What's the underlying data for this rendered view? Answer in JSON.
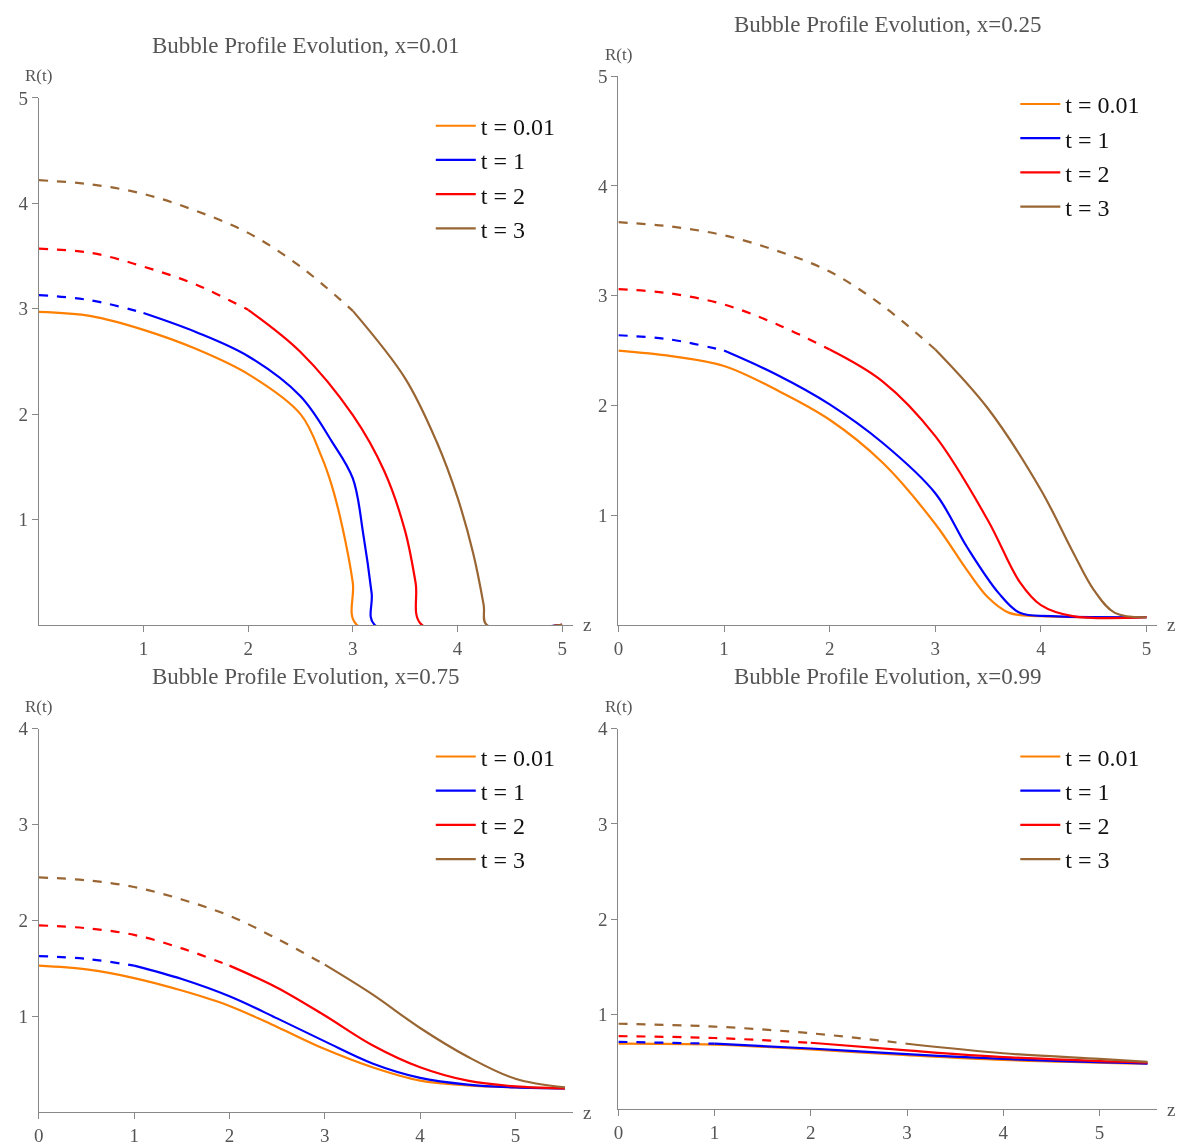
{
  "chart_data": [
    {
      "type": "line",
      "title": "Bubble Profile Evolution, x=0.01",
      "xlabel": "z",
      "ylabel": "R(t)",
      "xlim": [
        0,
        5.1
      ],
      "ylim": [
        0,
        5
      ],
      "xticks": [
        1,
        2,
        3,
        4,
        5
      ],
      "yticks": [
        1,
        2,
        3,
        4,
        5
      ],
      "legend": "top right",
      "series": [
        {
          "name": "t = 0.01",
          "color": "#ff8000",
          "line_style": "solid",
          "x": [
            0,
            0.5,
            1,
            1.5,
            2,
            2.5,
            2.7,
            2.8,
            2.9,
            3.0,
            3.04,
            5.0
          ],
          "values": [
            2.97,
            2.93,
            2.8,
            2.62,
            2.38,
            2.0,
            1.6,
            1.32,
            0.93,
            0.4,
            0,
            0
          ]
        },
        {
          "name": "t = 1",
          "color": "#0000ff",
          "line_style": "solid",
          "x": [
            1,
            1.5,
            2,
            2.5,
            2.8,
            3.0,
            3.1,
            3.18,
            3.21,
            5.0
          ],
          "values": [
            2.96,
            2.78,
            2.55,
            2.17,
            1.74,
            1.39,
            0.86,
            0.3,
            0,
            0
          ]
        },
        {
          "name": "t = 2",
          "color": "#ff0000",
          "line_style": "solid",
          "x": [
            2,
            2.5,
            3,
            3.3,
            3.5,
            3.6,
            3.66,
            5.0
          ],
          "values": [
            2.99,
            2.59,
            1.99,
            1.46,
            0.89,
            0.4,
            0,
            0
          ]
        },
        {
          "name": "t = 3",
          "color": "#996633",
          "line_style": "solid",
          "x": [
            3,
            3.5,
            3.8,
            4,
            4.15,
            4.25,
            4.28,
            5.0
          ],
          "values": [
            2.98,
            2.34,
            1.74,
            1.21,
            0.68,
            0.19,
            0,
            0
          ]
        },
        {
          "color": "#0000ff",
          "line_style": "dashed",
          "x": [
            0,
            0.5,
            1
          ],
          "values": [
            3.13,
            3.08,
            2.96
          ]
        },
        {
          "color": "#ff0000",
          "line_style": "dashed",
          "x": [
            0,
            0.5,
            1,
            1.5,
            2
          ],
          "values": [
            3.57,
            3.53,
            3.4,
            3.23,
            2.99
          ]
        },
        {
          "color": "#996633",
          "line_style": "dashed",
          "x": [
            0,
            0.5,
            1,
            1.5,
            2,
            2.5,
            3
          ],
          "values": [
            4.22,
            4.18,
            4.09,
            3.93,
            3.72,
            3.4,
            2.98
          ]
        }
      ]
    },
    {
      "type": "line",
      "title": "Bubble Profile Evolution, x=0.25",
      "xlabel": "z",
      "ylabel": "R(t)",
      "xlim": [
        0,
        5.1
      ],
      "ylim": [
        0,
        5
      ],
      "xticks": [
        0,
        1,
        2,
        3,
        4,
        5
      ],
      "yticks": [
        1,
        2,
        3,
        4,
        5
      ],
      "legend": "top right",
      "series": [
        {
          "name": "t = 0.01",
          "color": "#ff8000",
          "line_style": "solid",
          "x": [
            0,
            0.5,
            1,
            1.5,
            2,
            2.5,
            3,
            3.3,
            3.5,
            3.7,
            4,
            5.0
          ],
          "values": [
            2.5,
            2.45,
            2.36,
            2.14,
            1.87,
            1.48,
            0.92,
            0.5,
            0.25,
            0.11,
            0.08,
            0.07
          ]
        },
        {
          "name": "t = 1",
          "color": "#0000ff",
          "line_style": "solid",
          "x": [
            1,
            1.5,
            2,
            2.5,
            3,
            3.3,
            3.6,
            3.8,
            4.1,
            5.0
          ],
          "values": [
            2.5,
            2.28,
            2.01,
            1.66,
            1.2,
            0.71,
            0.29,
            0.11,
            0.08,
            0.07
          ]
        },
        {
          "name": "t = 2",
          "color": "#ff0000",
          "line_style": "solid",
          "x": [
            2,
            2.5,
            3,
            3.5,
            3.8,
            4,
            4.3,
            5.0
          ],
          "values": [
            2.51,
            2.22,
            1.72,
            0.95,
            0.39,
            0.18,
            0.08,
            0.07
          ]
        },
        {
          "name": "t = 3",
          "color": "#996633",
          "line_style": "solid",
          "x": [
            3,
            3.5,
            4,
            4.3,
            4.5,
            4.7,
            5.0
          ],
          "values": [
            2.51,
            1.97,
            1.23,
            0.67,
            0.32,
            0.11,
            0.07
          ]
        },
        {
          "color": "#0000ff",
          "line_style": "dashed",
          "x": [
            0,
            0.5,
            1
          ],
          "values": [
            2.64,
            2.6,
            2.5
          ]
        },
        {
          "color": "#ff0000",
          "line_style": "dashed",
          "x": [
            0,
            0.5,
            1,
            1.5,
            2
          ],
          "values": [
            3.06,
            3.02,
            2.92,
            2.74,
            2.51
          ]
        },
        {
          "color": "#996633",
          "line_style": "dashed",
          "x": [
            0,
            0.5,
            1,
            1.5,
            2,
            2.5,
            3
          ],
          "values": [
            3.67,
            3.63,
            3.55,
            3.41,
            3.22,
            2.91,
            2.51
          ]
        }
      ]
    },
    {
      "type": "line",
      "title": "Bubble Profile Evolution, x=0.75",
      "xlabel": "z",
      "ylabel": "R(t)",
      "xlim": [
        0,
        5.6
      ],
      "ylim": [
        0,
        4
      ],
      "xticks": [
        0,
        1,
        2,
        3,
        4,
        5
      ],
      "yticks": [
        1,
        2,
        3,
        4
      ],
      "legend": "top right",
      "series": [
        {
          "name": "t = 0.01",
          "color": "#ff8000",
          "line_style": "solid",
          "x": [
            0,
            0.5,
            1,
            1.5,
            2,
            2.5,
            3,
            3.5,
            4,
            4.5,
            5,
            5.52
          ],
          "values": [
            1.53,
            1.49,
            1.4,
            1.27,
            1.11,
            0.89,
            0.66,
            0.47,
            0.33,
            0.28,
            0.26,
            0.25
          ]
        },
        {
          "name": "t = 1",
          "color": "#0000ff",
          "line_style": "solid",
          "x": [
            1,
            1.5,
            2,
            2.5,
            3,
            3.5,
            4,
            4.5,
            5,
            5.52
          ],
          "values": [
            1.53,
            1.39,
            1.21,
            0.98,
            0.74,
            0.51,
            0.36,
            0.29,
            0.26,
            0.25
          ]
        },
        {
          "name": "t = 2",
          "color": "#ff0000",
          "line_style": "solid",
          "x": [
            2,
            2.5,
            3,
            3.5,
            4,
            4.5,
            5,
            5.52
          ],
          "values": [
            1.53,
            1.3,
            1.01,
            0.7,
            0.47,
            0.33,
            0.27,
            0.25
          ]
        },
        {
          "name": "t = 3",
          "color": "#996633",
          "line_style": "solid",
          "x": [
            3,
            3.5,
            4,
            4.5,
            5,
            5.52
          ],
          "values": [
            1.54,
            1.23,
            0.88,
            0.58,
            0.35,
            0.26
          ]
        },
        {
          "color": "#0000ff",
          "line_style": "dashed",
          "x": [
            0,
            0.5,
            1
          ],
          "values": [
            1.63,
            1.6,
            1.53
          ]
        },
        {
          "color": "#ff0000",
          "line_style": "dashed",
          "x": [
            0,
            0.5,
            1,
            1.5,
            2
          ],
          "values": [
            1.95,
            1.92,
            1.85,
            1.71,
            1.53
          ]
        },
        {
          "color": "#996633",
          "line_style": "dashed",
          "x": [
            0,
            0.5,
            1,
            1.5,
            2,
            2.5,
            3
          ],
          "values": [
            2.45,
            2.42,
            2.35,
            2.22,
            2.05,
            1.81,
            1.54
          ]
        }
      ]
    },
    {
      "type": "line",
      "title": "Bubble Profile Evolution, x=0.99",
      "xlabel": "z",
      "ylabel": "R(t)",
      "xlim": [
        0,
        5.6
      ],
      "ylim": [
        0,
        4
      ],
      "xticks": [
        0,
        1,
        2,
        3,
        4,
        5
      ],
      "yticks": [
        1,
        2,
        3,
        4
      ],
      "legend": "top right",
      "series": [
        {
          "name": "t = 0.01",
          "color": "#ff8000",
          "line_style": "solid",
          "x": [
            0,
            1,
            2,
            3,
            4,
            5.5
          ],
          "values": [
            0.69,
            0.68,
            0.63,
            0.57,
            0.52,
            0.48
          ]
        },
        {
          "name": "t = 1",
          "color": "#0000ff",
          "line_style": "solid",
          "x": [
            1,
            2,
            3,
            4,
            5.5
          ],
          "values": [
            0.69,
            0.64,
            0.58,
            0.53,
            0.48
          ]
        },
        {
          "name": "t = 2",
          "color": "#ff0000",
          "line_style": "solid",
          "x": [
            2,
            3,
            4,
            5.5
          ],
          "values": [
            0.7,
            0.62,
            0.55,
            0.49
          ]
        },
        {
          "name": "t = 3",
          "color": "#996633",
          "line_style": "solid",
          "x": [
            3,
            4,
            5,
            5.5
          ],
          "values": [
            0.69,
            0.59,
            0.53,
            0.5
          ]
        },
        {
          "color": "#0000ff",
          "line_style": "dashed",
          "x": [
            0,
            1
          ],
          "values": [
            0.71,
            0.69
          ]
        },
        {
          "color": "#ff0000",
          "line_style": "dashed",
          "x": [
            0,
            1,
            2
          ],
          "values": [
            0.77,
            0.75,
            0.7
          ]
        },
        {
          "color": "#996633",
          "line_style": "dashed",
          "x": [
            0,
            1,
            2,
            3
          ],
          "values": [
            0.9,
            0.87,
            0.8,
            0.69
          ]
        }
      ]
    }
  ]
}
